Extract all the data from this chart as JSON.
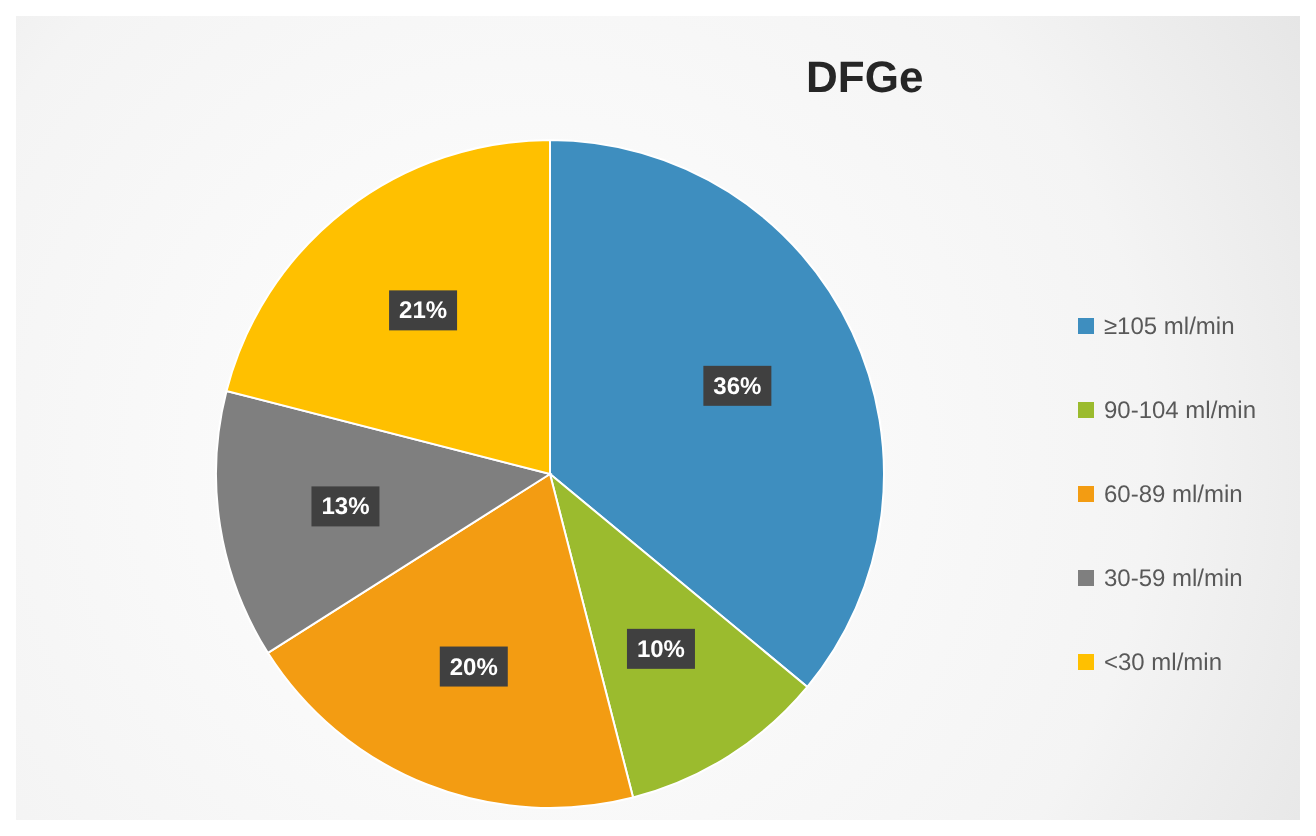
{
  "chart_data": {
    "type": "pie",
    "title": "DFGe",
    "categories": [
      "≥105 ml/min",
      "90-104 ml/min",
      "60-89 ml/min",
      "30-59 ml/min",
      "<30 ml/min"
    ],
    "values": [
      36,
      10,
      20,
      13,
      21
    ],
    "value_labels": [
      "36%",
      "10%",
      "20%",
      "13%",
      "21%"
    ],
    "colors": [
      "#3e8ebf",
      "#9bbb2e",
      "#f39c12",
      "#7f7f7f",
      "#ffc000"
    ],
    "legend": "right"
  }
}
